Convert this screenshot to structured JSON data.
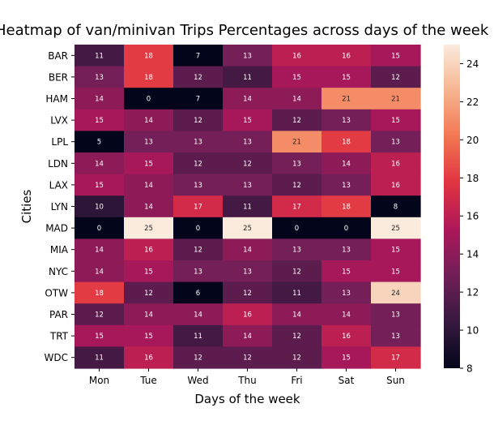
{
  "chart_data": {
    "type": "heatmap",
    "title": "Heatmap of van/minivan Trips Percentages across days of the week",
    "xlabel": "Days of the week",
    "ylabel": "Cities",
    "x": [
      "Mon",
      "Tue",
      "Wed",
      "Thu",
      "Fri",
      "Sat",
      "Sun"
    ],
    "y": [
      "BAR",
      "BER",
      "HAM",
      "LVX",
      "LPL",
      "LDN",
      "LAX",
      "LYN",
      "MAD",
      "MIA",
      "NYC",
      "OTW",
      "PAR",
      "TRT",
      "WDC"
    ],
    "values": [
      [
        11,
        18,
        7,
        13,
        16,
        16,
        15
      ],
      [
        13,
        18,
        12,
        11,
        15,
        15,
        12
      ],
      [
        14,
        0,
        7,
        14,
        14,
        21,
        21
      ],
      [
        15,
        14,
        12,
        15,
        12,
        13,
        15
      ],
      [
        5,
        13,
        13,
        13,
        21,
        18,
        13
      ],
      [
        14,
        15,
        12,
        12,
        13,
        14,
        16
      ],
      [
        15,
        14,
        13,
        13,
        12,
        13,
        16
      ],
      [
        10,
        14,
        17,
        11,
        17,
        18,
        8
      ],
      [
        0,
        25,
        0,
        25,
        0,
        0,
        25
      ],
      [
        14,
        16,
        12,
        14,
        13,
        13,
        15
      ],
      [
        14,
        15,
        13,
        13,
        12,
        15,
        15
      ],
      [
        18,
        12,
        6,
        12,
        11,
        13,
        24
      ],
      [
        12,
        14,
        14,
        16,
        14,
        14,
        13
      ],
      [
        15,
        15,
        11,
        14,
        12,
        16,
        13
      ],
      [
        11,
        16,
        12,
        12,
        12,
        15,
        17
      ]
    ],
    "color_range": [
      8,
      25
    ],
    "colorbar_ticks": [
      8,
      10,
      12,
      14,
      16,
      18,
      20,
      22,
      24
    ],
    "colormap": "rocket",
    "colormap_stops": [
      "#03051a",
      "#36193e",
      "#701f57",
      "#ad1759",
      "#e13342",
      "#f37651",
      "#f6b48f",
      "#faebdd"
    ],
    "annotations": true,
    "grid": false,
    "legend": "colorbar-right"
  }
}
